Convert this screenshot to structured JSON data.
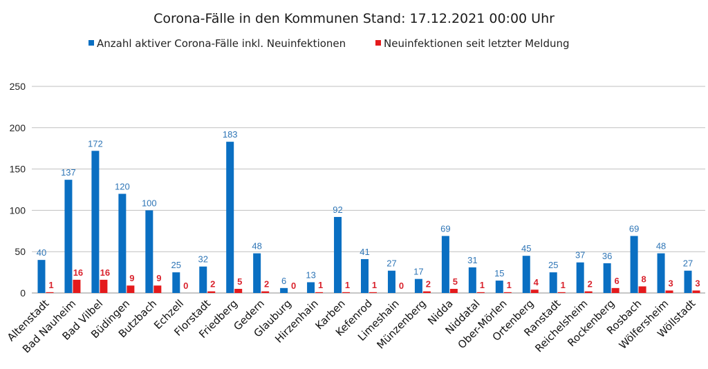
{
  "colors": {
    "active": "#0a6fc2",
    "new": "#e41a1c",
    "active_label": "#2e75b6",
    "new_label": "#d9232d",
    "grid": "#bfbfbf"
  },
  "chart_data": {
    "type": "bar",
    "title": "Corona-Fälle in den Kommunen Stand: 17.12.2021 00:00 Uhr",
    "categories": [
      "Altenstadt",
      "Bad Nauheim",
      "Bad Vilbel",
      "Büdingen",
      "Butzbach",
      "Echzell",
      "Florstadt",
      "Friedberg",
      "Gedern",
      "Glauburg",
      "Hirzenhain",
      "Karben",
      "Kefenrod",
      "Limeshain",
      "Münzenberg",
      "Nidda",
      "Niddatal",
      "Ober-Mörlen",
      "Ortenberg",
      "Ranstadt",
      "Reichelsheim",
      "Rockenberg",
      "Rosbach",
      "Wölfersheim",
      "Wöllstadt"
    ],
    "series": [
      {
        "name": "Anzahl aktiver Corona-Fälle inkl. Neuinfektionen",
        "values": [
          40,
          137,
          172,
          120,
          100,
          25,
          32,
          183,
          48,
          6,
          13,
          92,
          41,
          27,
          17,
          69,
          31,
          15,
          45,
          25,
          37,
          36,
          69,
          48,
          27
        ]
      },
      {
        "name": "Neuinfektionen seit letzter Meldung",
        "values": [
          1,
          16,
          16,
          9,
          9,
          0,
          2,
          5,
          2,
          0,
          1,
          1,
          1,
          0,
          2,
          5,
          1,
          1,
          4,
          1,
          2,
          6,
          8,
          3,
          3
        ]
      }
    ],
    "ylim": [
      0,
      250
    ],
    "yticks": [
      0,
      50,
      100,
      150,
      200,
      250
    ],
    "grid": true,
    "legend_position": "top"
  }
}
